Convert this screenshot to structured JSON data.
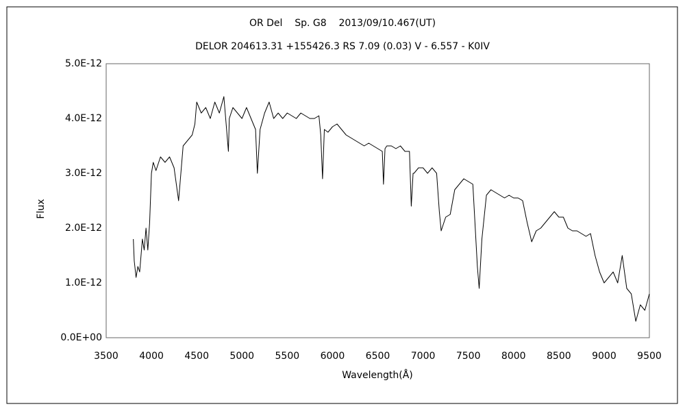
{
  "chart_data": {
    "type": "line",
    "title": "OR Del    Sp. G8    2013/09/10.467(UT)",
    "subtitle": "DELOR 204613.31 +155426.3 RS 7.09 (0.03) V - 6.557 - K0IV",
    "x_label": "Wavelength(Å)",
    "y_label": "Flux",
    "xlim": [
      3500,
      9500
    ],
    "xticks": [
      3500,
      4000,
      4500,
      5000,
      5500,
      6000,
      6500,
      7000,
      7500,
      8000,
      8500,
      9000,
      9500
    ],
    "ylim": [
      0,
      5e-12
    ],
    "yticks": [
      {
        "value": 0,
        "label": "0.0E+00"
      },
      {
        "value": 1e-12,
        "label": "1.0E-12"
      },
      {
        "value": 2e-12,
        "label": "2.0E-12"
      },
      {
        "value": 3e-12,
        "label": "3.0E-12"
      },
      {
        "value": 4e-12,
        "label": "4.0E-12"
      },
      {
        "value": 5e-12,
        "label": "5.0E-12"
      }
    ],
    "grid": false,
    "x": [
      3800,
      3810,
      3830,
      3850,
      3870,
      3900,
      3920,
      3940,
      3960,
      3980,
      4000,
      4020,
      4050,
      4100,
      4150,
      4200,
      4250,
      4300,
      4320,
      4350,
      4400,
      4450,
      4480,
      4500,
      4550,
      4600,
      4650,
      4700,
      4750,
      4800,
      4850,
      4860,
      4900,
      4950,
      5000,
      5050,
      5100,
      5150,
      5170,
      5200,
      5250,
      5300,
      5350,
      5400,
      5450,
      5500,
      5550,
      5600,
      5650,
      5700,
      5750,
      5800,
      5850,
      5870,
      5890,
      5910,
      5950,
      6000,
      6050,
      6100,
      6150,
      6200,
      6250,
      6300,
      6350,
      6400,
      6450,
      6500,
      6550,
      6563,
      6580,
      6600,
      6650,
      6700,
      6750,
      6800,
      6850,
      6870,
      6890,
      6900,
      6950,
      7000,
      7050,
      7100,
      7150,
      7180,
      7200,
      7250,
      7300,
      7350,
      7400,
      7450,
      7500,
      7550,
      7600,
      7620,
      7650,
      7700,
      7750,
      7800,
      7850,
      7900,
      7950,
      8000,
      8050,
      8100,
      8150,
      8200,
      8250,
      8300,
      8350,
      8400,
      8450,
      8500,
      8550,
      8600,
      8650,
      8700,
      8750,
      8800,
      8850,
      8900,
      8950,
      9000,
      9050,
      9100,
      9150,
      9200,
      9250,
      9300,
      9350,
      9400,
      9450,
      9500
    ],
    "series": [
      {
        "name": "Flux",
        "color": "#000000",
        "values": [
          1.8e-12,
          1.4e-12,
          1.1e-12,
          1.3e-12,
          1.2e-12,
          1.8e-12,
          1.6e-12,
          2e-12,
          1.6e-12,
          2.1e-12,
          3e-12,
          3.2e-12,
          3.05e-12,
          3.3e-12,
          3.2e-12,
          3.3e-12,
          3.1e-12,
          2.5e-12,
          2.9e-12,
          3.5e-12,
          3.6e-12,
          3.7e-12,
          3.9e-12,
          4.3e-12,
          4.1e-12,
          4.2e-12,
          4e-12,
          4.3e-12,
          4.1e-12,
          4.4e-12,
          3.4e-12,
          4e-12,
          4.2e-12,
          4.1e-12,
          4e-12,
          4.2e-12,
          4e-12,
          3.8e-12,
          3e-12,
          3.8e-12,
          4.1e-12,
          4.3e-12,
          4e-12,
          4.1e-12,
          4e-12,
          4.1e-12,
          4.05e-12,
          4e-12,
          4.1e-12,
          4.05e-12,
          4e-12,
          4e-12,
          4.05e-12,
          3.7e-12,
          2.9e-12,
          3.8e-12,
          3.75e-12,
          3.85e-12,
          3.9e-12,
          3.8e-12,
          3.7e-12,
          3.65e-12,
          3.6e-12,
          3.55e-12,
          3.5e-12,
          3.55e-12,
          3.5e-12,
          3.45e-12,
          3.4e-12,
          2.8e-12,
          3.45e-12,
          3.5e-12,
          3.5e-12,
          3.45e-12,
          3.5e-12,
          3.4e-12,
          3.4e-12,
          2.4e-12,
          3e-12,
          3e-12,
          3.1e-12,
          3.1e-12,
          3e-12,
          3.1e-12,
          3e-12,
          2.3e-12,
          1.95e-12,
          2.2e-12,
          2.25e-12,
          2.7e-12,
          2.8e-12,
          2.9e-12,
          2.85e-12,
          2.8e-12,
          1.3e-12,
          9e-13,
          1.8e-12,
          2.6e-12,
          2.7e-12,
          2.65e-12,
          2.6e-12,
          2.55e-12,
          2.6e-12,
          2.55e-12,
          2.55e-12,
          2.5e-12,
          2.1e-12,
          1.75e-12,
          1.95e-12,
          2e-12,
          2.1e-12,
          2.2e-12,
          2.3e-12,
          2.2e-12,
          2.2e-12,
          2e-12,
          1.95e-12,
          1.95e-12,
          1.9e-12,
          1.85e-12,
          1.9e-12,
          1.5e-12,
          1.2e-12,
          1e-12,
          1.1e-12,
          1.2e-12,
          1e-12,
          1.5e-12,
          9e-13,
          8e-13,
          3e-13,
          6e-13,
          5e-13,
          8e-13
        ]
      }
    ]
  }
}
